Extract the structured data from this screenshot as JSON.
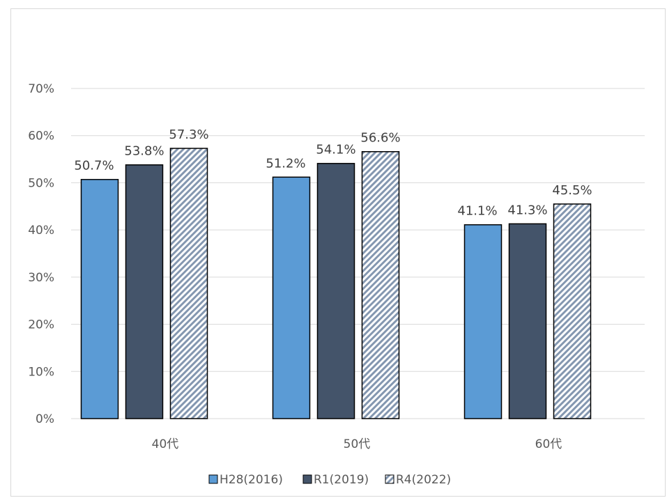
{
  "chart_data": {
    "type": "bar",
    "categories": [
      "40代",
      "50代",
      "60代"
    ],
    "series": [
      {
        "name": "H28(2016)",
        "values": [
          50.7,
          51.2,
          41.1
        ],
        "labels": [
          "50.7%",
          "51.2%",
          "41.1%"
        ],
        "color": "#5b9bd5",
        "pattern": "solid"
      },
      {
        "name": "R1(2019)",
        "values": [
          53.8,
          54.1,
          41.3
        ],
        "labels": [
          "53.8%",
          "54.1%",
          "41.3%"
        ],
        "color": "#44546a",
        "pattern": "solid"
      },
      {
        "name": "R4(2022)",
        "values": [
          57.3,
          56.6,
          45.5
        ],
        "labels": [
          "57.3%",
          "56.6%",
          "45.5%"
        ],
        "color": "#8497b0",
        "pattern": "diagonal-stripes"
      }
    ],
    "y_ticks": [
      "0%",
      "10%",
      "20%",
      "30%",
      "40%",
      "50%",
      "60%",
      "70%"
    ],
    "ylim": [
      0,
      70
    ],
    "grid": true,
    "legend_position": "bottom",
    "gridline_color": "#d9d9d9",
    "bar_border_color": "#000000"
  }
}
